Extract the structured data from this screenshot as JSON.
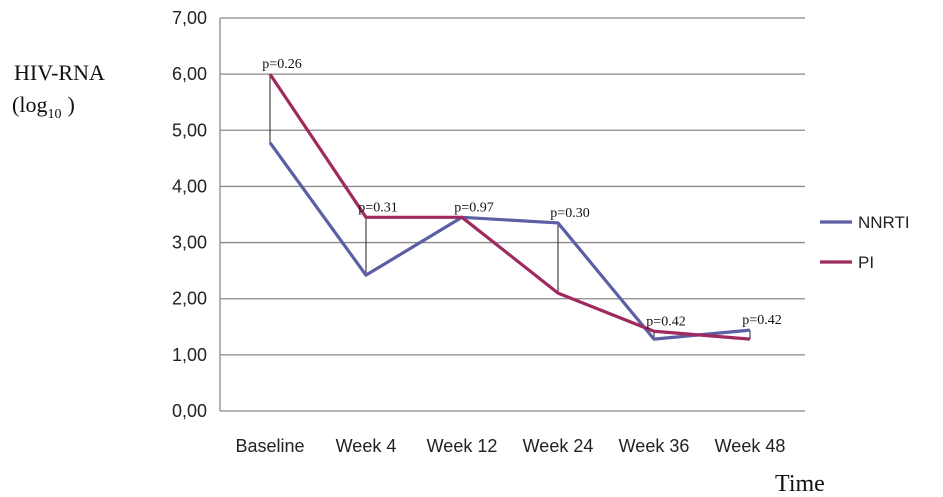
{
  "chart_data": {
    "type": "line",
    "categories": [
      "Baseline",
      "Week 4",
      "Week 12",
      "Week 24",
      "Week 36",
      "Week 48"
    ],
    "series": [
      {
        "name": "NNRTI",
        "color": "#5b5fa3",
        "values": [
          4.78,
          2.42,
          3.45,
          3.35,
          1.28,
          1.44
        ]
      },
      {
        "name": "PI",
        "color": "#9e2a60",
        "values": [
          6.0,
          3.45,
          3.45,
          2.1,
          1.42,
          1.28
        ]
      }
    ],
    "annotations": [
      "p=0.26",
      "p=0.31",
      "p=0.97",
      "p=0.30",
      "p=0.42",
      "p=0.42"
    ],
    "ylabel_line1": "HIV-RNA",
    "ylabel_line2_main": "(log",
    "ylabel_line2_sub": "10",
    "ylabel_line2_end": ")",
    "xlabel": "Time",
    "ylim": [
      0,
      7
    ],
    "yticks": [
      "0,00",
      "1,00",
      "2,00",
      "3,00",
      "4,00",
      "5,00",
      "6,00",
      "7,00"
    ],
    "grid": true,
    "legend_position": "right"
  }
}
